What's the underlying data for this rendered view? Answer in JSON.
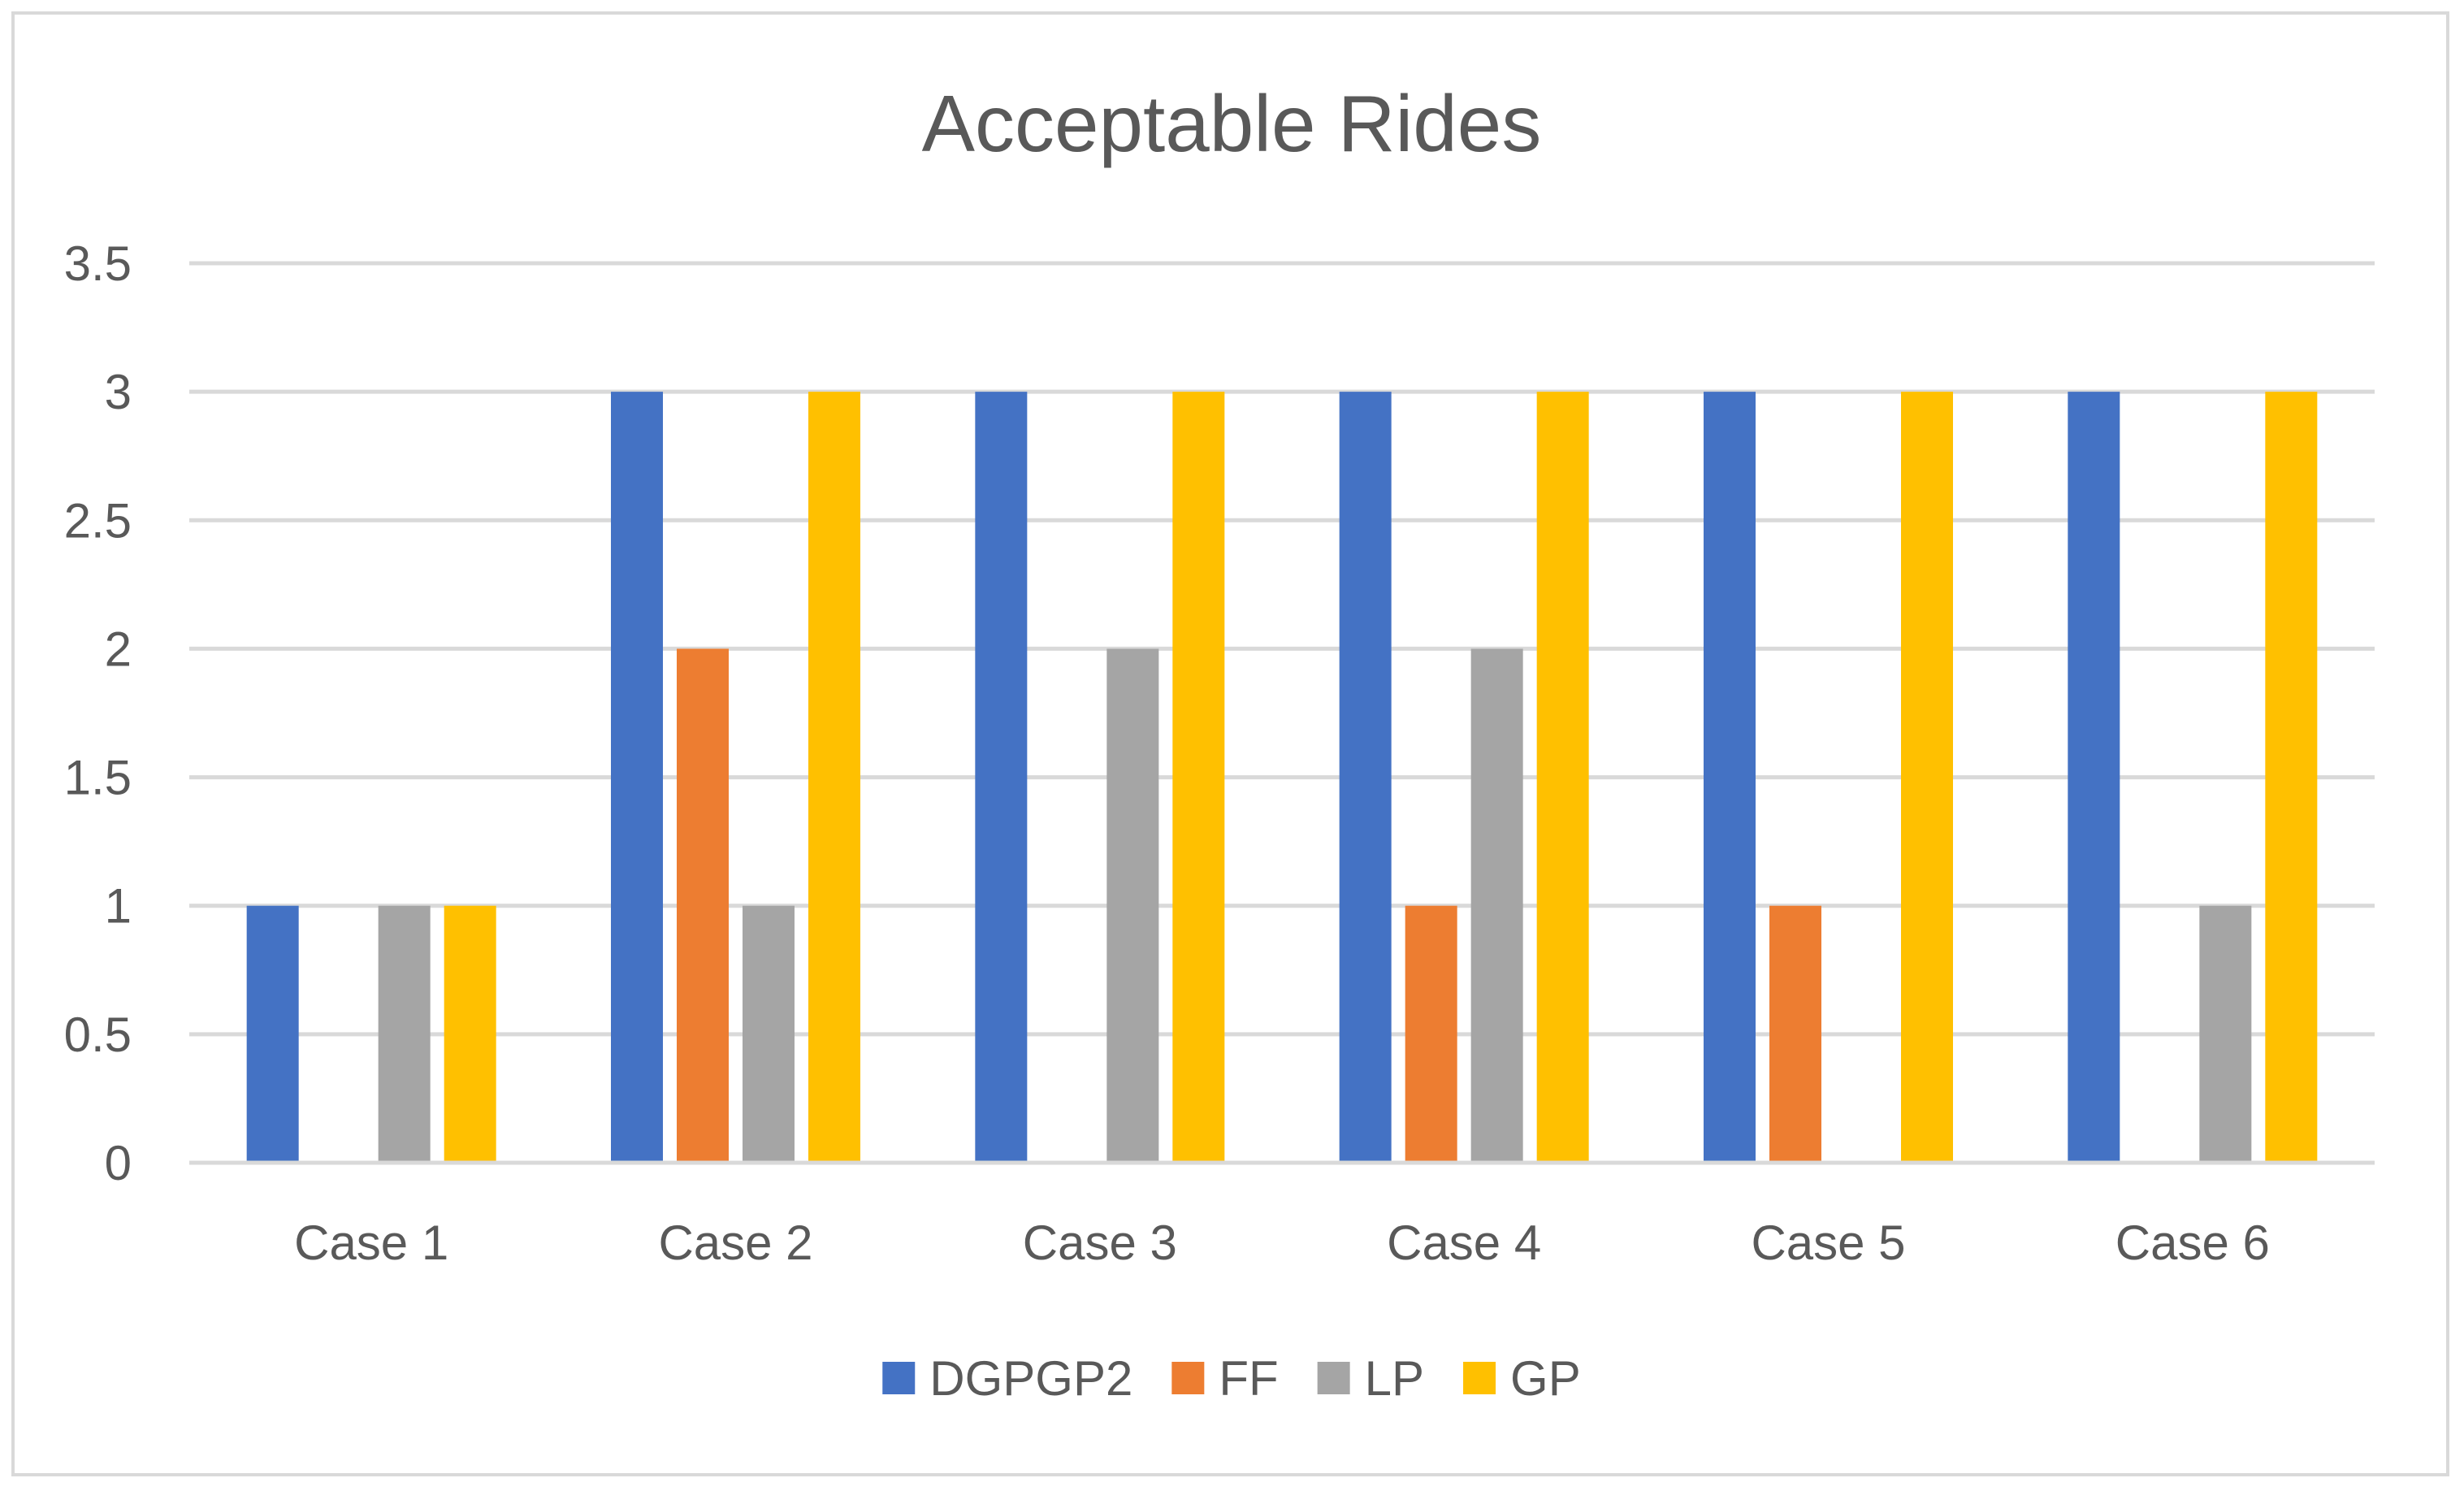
{
  "chart_data": {
    "type": "bar",
    "title": "Acceptable Rides",
    "xlabel": "",
    "ylabel": "",
    "categories": [
      "Case 1",
      "Case 2",
      "Case 3",
      "Case 4",
      "Case 5",
      "Case 6"
    ],
    "ylim": [
      0,
      3.5
    ],
    "yticks": [
      "0",
      "0.5",
      "1",
      "1.5",
      "2",
      "2.5",
      "3",
      "3.5"
    ],
    "ytick_values": [
      0,
      0.5,
      1,
      1.5,
      2,
      2.5,
      3,
      3.5
    ],
    "grid": true,
    "legend_position": "bottom",
    "series": [
      {
        "name": "DGPGP2",
        "color": "#4472c4",
        "values": [
          1,
          3,
          3,
          3,
          3,
          3
        ]
      },
      {
        "name": "FF",
        "color": "#ed7d31",
        "values": [
          0,
          2,
          0,
          1,
          1,
          0
        ]
      },
      {
        "name": "LP",
        "color": "#a5a5a5",
        "values": [
          1,
          1,
          2,
          2,
          0,
          1
        ]
      },
      {
        "name": "GP",
        "color": "#ffc000",
        "values": [
          1,
          3,
          3,
          3,
          3,
          3
        ]
      }
    ]
  }
}
